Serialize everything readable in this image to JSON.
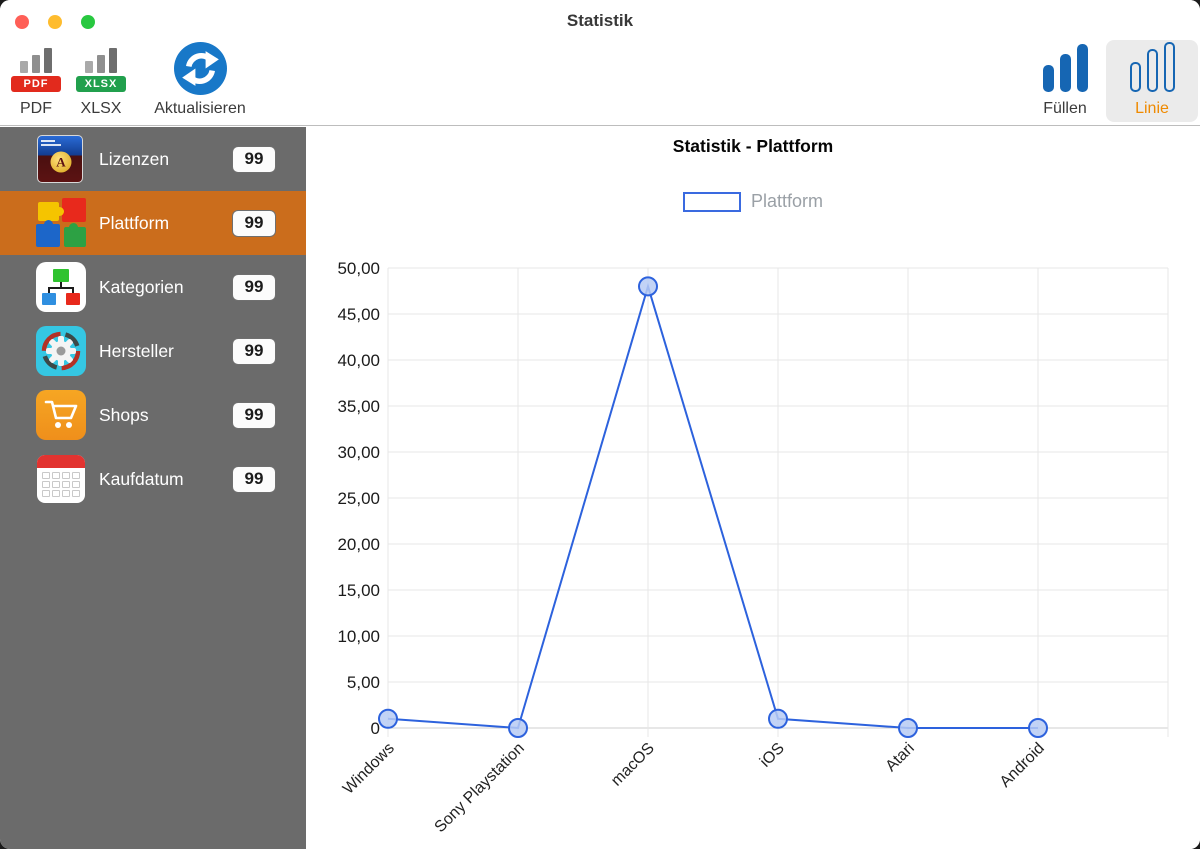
{
  "window": {
    "title": "Statistik"
  },
  "traffic_lights": {
    "close": "#ff5f57",
    "minimize": "#febc2e",
    "zoom": "#28c840"
  },
  "toolbar": {
    "pdf": {
      "label": "PDF",
      "badge": "PDF"
    },
    "xlsx": {
      "label": "XLSX",
      "badge": "XLSX"
    },
    "refresh": {
      "label": "Aktualisieren"
    },
    "fill": {
      "label": "Füllen"
    },
    "line": {
      "label": "Linie",
      "selected": true
    }
  },
  "sidebar": {
    "items": [
      {
        "label": "Lizenzen",
        "count": "99",
        "icon": "license-app-icon",
        "selected": false
      },
      {
        "label": "Plattform",
        "count": "99",
        "icon": "puzzle-icon",
        "selected": true
      },
      {
        "label": "Kategorien",
        "count": "99",
        "icon": "hierarchy-icon",
        "selected": false
      },
      {
        "label": "Hersteller",
        "count": "99",
        "icon": "gear-icon",
        "selected": false
      },
      {
        "label": "Shops",
        "count": "99",
        "icon": "cart-icon",
        "selected": false
      },
      {
        "label": "Kaufdatum",
        "count": "99",
        "icon": "calendar-icon",
        "selected": false
      }
    ]
  },
  "chart_data": {
    "type": "line",
    "title": "Statistik - Plattform",
    "categories": [
      "Windows",
      "Sony Playstation",
      "macOS",
      "iOS",
      "Atari",
      "Android"
    ],
    "series": [
      {
        "name": "Plattform",
        "values": [
          1,
          0,
          48,
          1,
          0,
          0
        ],
        "color": "#2d62dd",
        "marker_fill": "#b7cbf4"
      }
    ],
    "ylim": [
      0,
      50
    ],
    "ytick_step": 5,
    "ytick_labels": [
      "0",
      "5,00",
      "10,00",
      "15,00",
      "20,00",
      "25,00",
      "30,00",
      "35,00",
      "40,00",
      "45,00",
      "50,00"
    ],
    "grid": true,
    "xlabel": "",
    "ylabel": "",
    "legend": {
      "position": "top",
      "entries": [
        {
          "label": "Plattform",
          "swatch": "outlined-box",
          "color": "#3a6ae0"
        }
      ]
    }
  },
  "colors": {
    "sidebar_bg": "#6b6b6b",
    "selected_row": "#cb6d1c",
    "line_blue": "#2d62dd",
    "linie_label_orange": "#ef8a00",
    "toolbar_bar_blue": "#1666b3",
    "refresh_blue": "#1878c8"
  }
}
